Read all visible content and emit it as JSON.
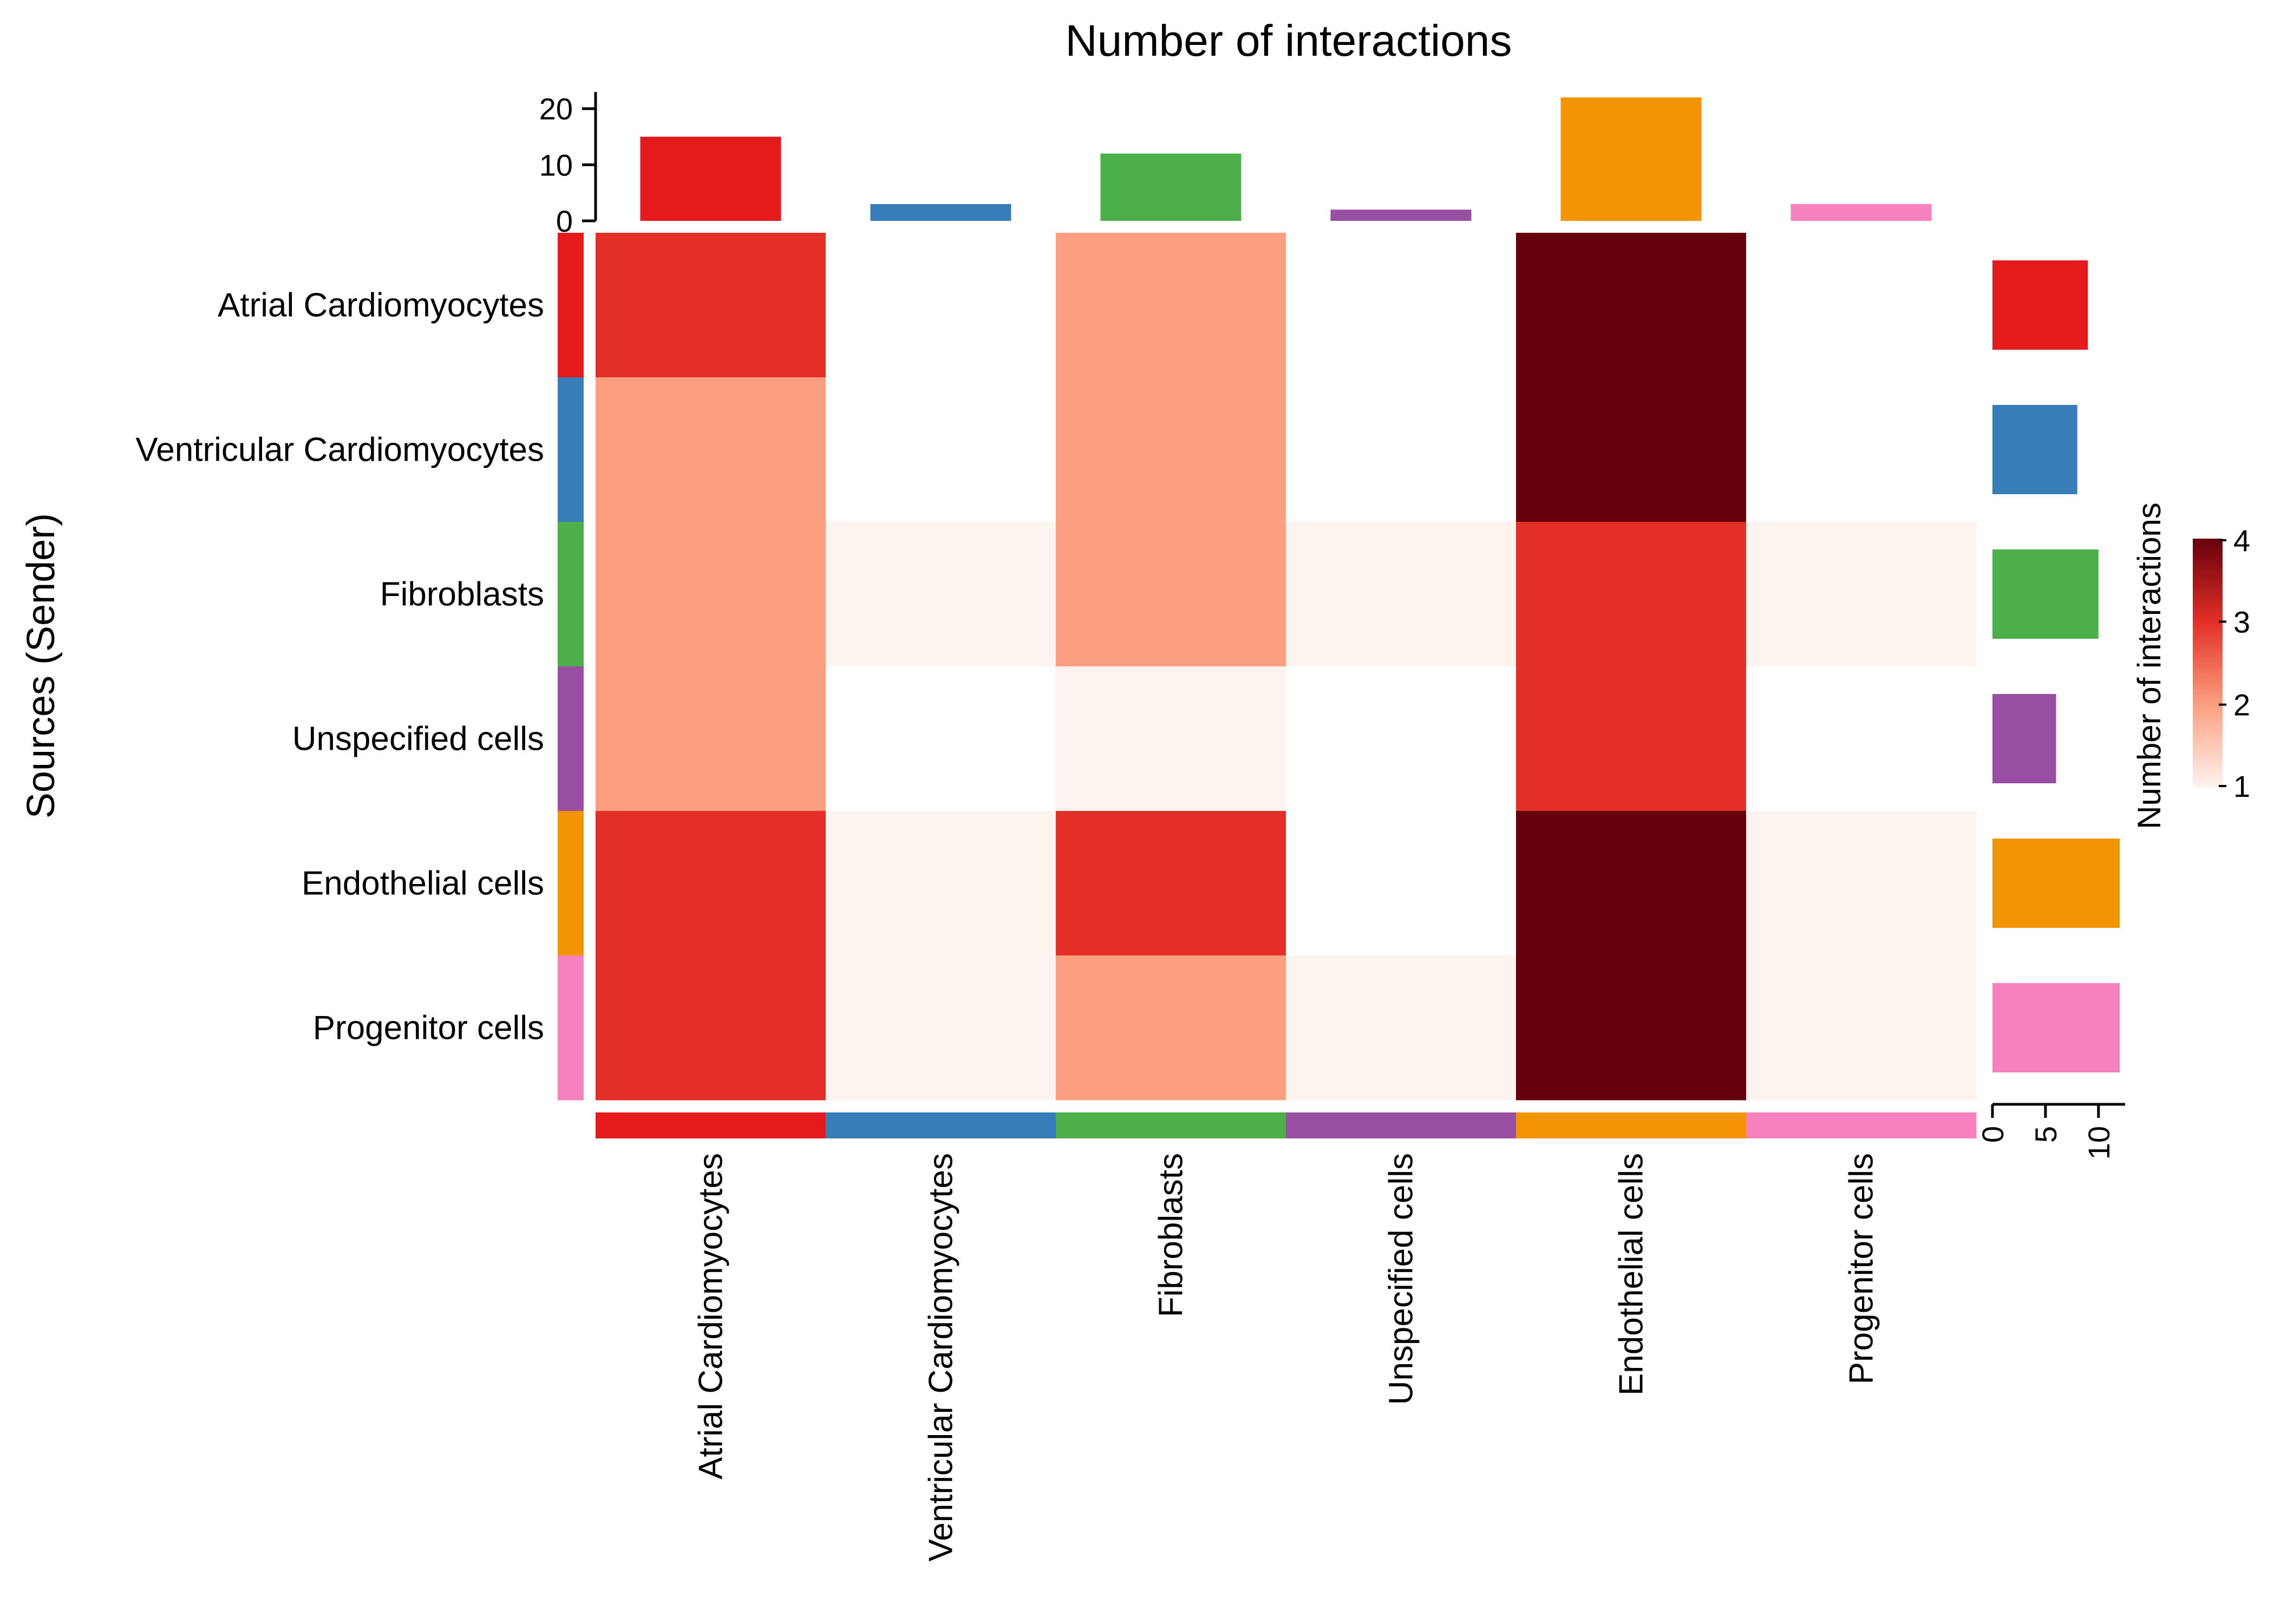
{
  "chart_data": {
    "type": "heatmap",
    "title": "Number of interactions",
    "ylabel": "Sources (Sender)",
    "legend_title": "Number of interactions",
    "rows": [
      "Atrial Cardiomyocytes",
      "Ventricular Cardiomyocytes",
      "Fibroblasts",
      "Unspecified cells",
      "Endothelial cells",
      "Progenitor cells"
    ],
    "columns": [
      "Atrial Cardiomyocytes",
      "Ventricular Cardiomyocytes",
      "Fibroblasts",
      "Unspecified cells",
      "Endothelial cells",
      "Progenitor cells"
    ],
    "values": [
      [
        3,
        null,
        2,
        null,
        4,
        null
      ],
      [
        2,
        null,
        2,
        null,
        4,
        null
      ],
      [
        2,
        1,
        2,
        1,
        3,
        1
      ],
      [
        2,
        null,
        1,
        null,
        3,
        null
      ],
      [
        3,
        1,
        3,
        null,
        4,
        1
      ],
      [
        3,
        1,
        2,
        1,
        4,
        1
      ]
    ],
    "group_colors": [
      "#E41A1C",
      "#377EB8",
      "#4DAF4A",
      "#984EA3",
      "#F29403",
      "#F781BF"
    ],
    "color_scale": {
      "range": [
        1,
        4
      ],
      "ticks": [
        1,
        2,
        3,
        4
      ],
      "tick_labels": [
        "1",
        "2",
        "3",
        "4"
      ],
      "colors": [
        "#FEF4EF",
        "#FC9F81",
        "#E32F27",
        "#67000D"
      ]
    },
    "top_bars": {
      "values": [
        15,
        3,
        12,
        2,
        22,
        3
      ],
      "ylim": [
        0,
        22
      ],
      "ticks": [
        0,
        10,
        20
      ],
      "tick_labels": [
        "0",
        "10",
        "20"
      ]
    },
    "right_bars": {
      "values": [
        9,
        8,
        10,
        6,
        12,
        12
      ],
      "xlim": [
        0,
        12
      ],
      "ticks": [
        0,
        5,
        10
      ],
      "tick_labels": [
        "0",
        "5",
        "10"
      ]
    }
  }
}
